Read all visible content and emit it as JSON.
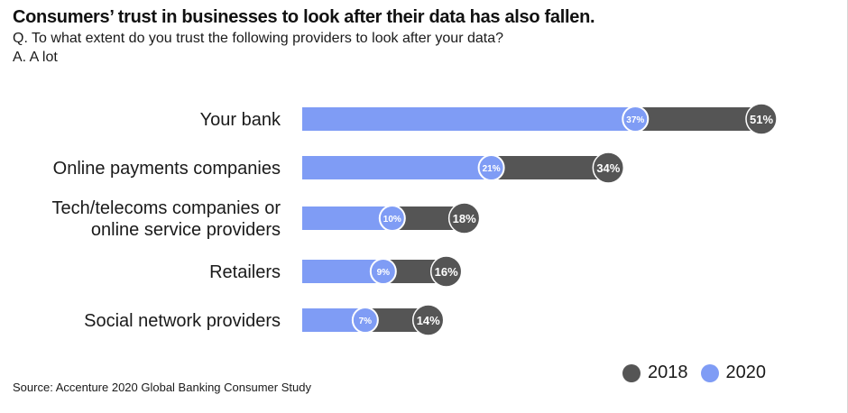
{
  "header": {
    "title": "Consumers’ trust in businesses to look after their data has also fallen.",
    "question": "Q. To what extent do you trust the following providers to look after your data?",
    "answer": "A. A lot"
  },
  "source": "Source: Accenture 2020 Global Banking Consumer Study",
  "colors": {
    "series_2018": "#555555",
    "series_2020": "#7f9cf5"
  },
  "chart_data": {
    "type": "bar",
    "orientation": "horizontal",
    "categories": [
      [
        "Your bank"
      ],
      [
        "Online payments companies"
      ],
      [
        "Tech/telecoms companies or",
        "online service providers"
      ],
      [
        "Retailers"
      ],
      [
        "Social network providers"
      ]
    ],
    "series": [
      {
        "name": "2018",
        "values": [
          51,
          34,
          18,
          16,
          14
        ],
        "labels": [
          "51%",
          "34%",
          "18%",
          "16%",
          "14%"
        ]
      },
      {
        "name": "2020",
        "values": [
          37,
          21,
          10,
          9,
          7
        ],
        "labels": [
          "37%",
          "21%",
          "10%",
          "9%",
          "7%"
        ]
      }
    ],
    "xlim": [
      0,
      51
    ],
    "grid": false,
    "legend": "bottom-right"
  }
}
